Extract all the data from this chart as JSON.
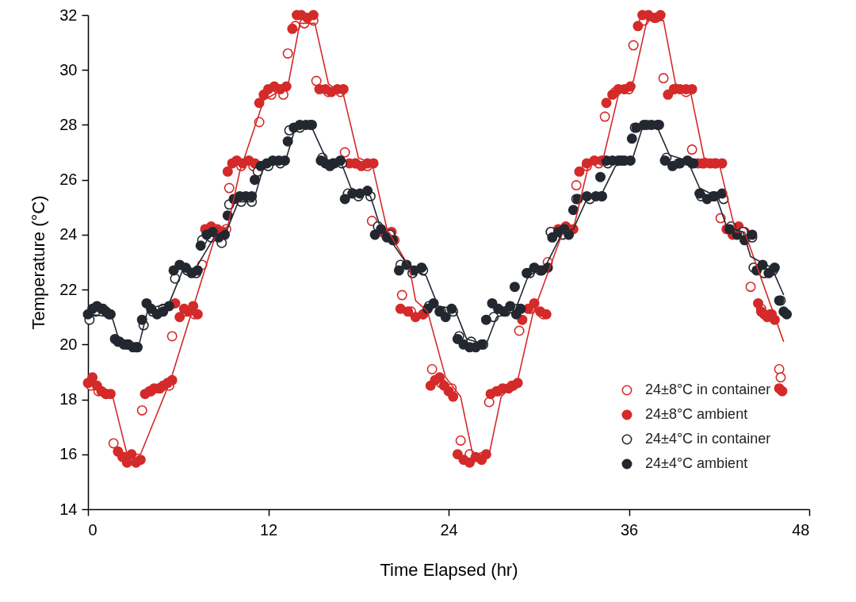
{
  "chart_data": {
    "type": "scatter",
    "xlabel": "Time Elapsed (hr)",
    "ylabel": "Temperature (°C)",
    "xlim": [
      0,
      48
    ],
    "xticks": [
      0,
      12,
      24,
      36,
      48
    ],
    "ylim": [
      14,
      32
    ],
    "yticks": [
      14,
      16,
      18,
      20,
      22,
      24,
      26,
      28,
      30,
      32
    ],
    "grid": false,
    "legend": "bottom right",
    "marker": "circle",
    "series": [
      {
        "name": "24±8°C in container",
        "color": "#d42a2a",
        "marker": "open circle",
        "x": [
          0.2,
          0.7,
          1.2,
          1.7,
          2.4,
          3.6,
          4.2,
          4.8,
          5.4,
          5.6,
          6.5,
          7.1,
          7.6,
          9.2,
          9.4,
          10.2,
          11.0,
          11.4,
          12.2,
          13.0,
          13.3,
          13.8,
          14.4,
          15.0,
          15.2,
          16.0,
          16.8,
          17.1,
          17.8,
          18.6,
          18.9,
          19.6,
          20.4,
          20.9,
          21.5,
          22.3,
          22.9,
          23.5,
          24.2,
          24.8,
          25.4,
          26.2,
          26.7,
          27.3,
          28.2,
          28.7,
          29.5,
          30.3,
          30.6,
          32.5,
          33.2,
          34.0,
          34.4,
          35.1,
          36.0,
          36.3,
          37.0,
          37.8,
          38.3,
          39.0,
          39.8,
          40.2,
          40.9,
          41.7,
          42.1,
          44.1,
          44.8,
          45.4,
          46.0,
          46.1
        ],
        "values": [
          18.5,
          18.3,
          18.2,
          16.4,
          15.9,
          17.6,
          18.3,
          18.4,
          18.5,
          20.3,
          21.2,
          21.1,
          22.9,
          24.2,
          25.7,
          26.5,
          26.5,
          28.1,
          29.1,
          29.1,
          30.6,
          31.6,
          31.7,
          31.8,
          29.6,
          29.2,
          29.2,
          27.0,
          26.6,
          26.5,
          24.5,
          24.1,
          23.8,
          21.8,
          21.2,
          21.1,
          19.1,
          18.6,
          18.4,
          16.5,
          16.0,
          15.9,
          17.9,
          18.3,
          18.5,
          20.5,
          21.3,
          21.1,
          23.0,
          25.8,
          26.5,
          26.6,
          28.3,
          29.2,
          29.3,
          30.9,
          31.8,
          31.9,
          29.7,
          29.3,
          29.2,
          27.1,
          26.6,
          26.6,
          24.6,
          22.1,
          21.3,
          21.1,
          19.1,
          18.8
        ]
      },
      {
        "name": "24±8°C ambient",
        "color": "#d42a2a",
        "x": [
          0,
          0.3,
          0.6,
          0.9,
          1.2,
          1.5,
          2.0,
          2.3,
          2.6,
          2.9,
          3.2,
          3.5,
          3.8,
          4.1,
          4.4,
          4.7,
          5.0,
          5.3,
          5.6,
          5.8,
          6.1,
          6.4,
          6.7,
          7.0,
          7.3,
          7.8,
          8.2,
          8.6,
          9.0,
          9.3,
          9.6,
          9.9,
          10.3,
          10.7,
          11.1,
          11.4,
          11.7,
          12.0,
          12.4,
          12.8,
          13.2,
          13.6,
          13.9,
          14.2,
          14.6,
          15.0,
          15.4,
          15.8,
          16.2,
          16.6,
          17.0,
          17.4,
          17.8,
          18.2,
          18.6,
          19.0,
          19.8,
          20.2,
          20.8,
          21.3,
          21.8,
          22.3,
          22.8,
          23.1,
          23.4,
          23.7,
          24.0,
          24.3,
          24.6,
          25.0,
          25.4,
          25.8,
          26.2,
          26.5,
          26.8,
          27.2,
          27.6,
          28.0,
          28.3,
          28.6,
          28.9,
          29.3,
          29.7,
          30.1,
          30.5,
          30.8,
          31.3,
          31.8,
          32.3,
          32.7,
          33.2,
          33.7,
          34.2,
          34.5,
          34.9,
          35.3,
          35.7,
          36.1,
          36.6,
          36.9,
          37.3,
          37.7,
          38.1,
          38.6,
          39.0,
          39.4,
          39.8,
          40.2,
          40.6,
          41.0,
          41.4,
          41.8,
          42.2,
          42.5,
          42.9,
          43.3,
          43.7,
          44.6,
          44.8,
          45.0,
          45.2,
          45.5,
          45.7,
          46.0,
          46.2
        ],
        "values": [
          18.6,
          18.8,
          18.5,
          18.3,
          18.2,
          18.2,
          16.1,
          15.9,
          15.7,
          16.0,
          15.7,
          15.8,
          18.2,
          18.3,
          18.4,
          18.4,
          18.5,
          18.6,
          18.7,
          21.5,
          21.0,
          21.3,
          21.2,
          21.4,
          21.1,
          24.2,
          24.3,
          24.2,
          24.1,
          26.3,
          26.6,
          26.7,
          26.6,
          26.7,
          26.6,
          28.8,
          29.1,
          29.3,
          29.4,
          29.3,
          29.4,
          31.5,
          32.0,
          32.0,
          31.9,
          32.0,
          29.3,
          29.3,
          29.2,
          29.3,
          29.3,
          26.6,
          26.6,
          26.5,
          26.6,
          26.6,
          24.0,
          24.1,
          21.3,
          21.2,
          21.0,
          21.1,
          18.5,
          18.7,
          18.8,
          18.5,
          18.3,
          18.1,
          16.0,
          15.8,
          15.7,
          15.9,
          15.8,
          16.0,
          18.2,
          18.3,
          18.4,
          18.4,
          18.5,
          18.6,
          20.9,
          21.3,
          21.5,
          21.2,
          21.1,
          24.1,
          24.2,
          24.3,
          24.2,
          26.3,
          26.6,
          26.7,
          26.7,
          28.8,
          29.1,
          29.3,
          29.3,
          29.4,
          31.6,
          32.0,
          32.0,
          31.9,
          32.0,
          29.1,
          29.3,
          29.3,
          29.3,
          29.3,
          26.6,
          26.6,
          26.6,
          26.6,
          26.6,
          24.2,
          24.0,
          24.3,
          24.1,
          21.5,
          21.2,
          21.1,
          21.0,
          21.1,
          20.9,
          18.4,
          18.3
        ]
      },
      {
        "name": "24±4°C in container",
        "color": "#232830",
        "marker": "open circle",
        "x": [
          0.1,
          0.5,
          1.0,
          1.4,
          2.0,
          2.6,
          3.2,
          3.7,
          4.3,
          5.0,
          5.8,
          6.6,
          7.2,
          7.6,
          8.2,
          8.9,
          9.4,
          10.2,
          10.9,
          11.3,
          12.0,
          12.8,
          13.4,
          14.1,
          14.8,
          15.6,
          16.3,
          16.9,
          17.3,
          18.0,
          18.8,
          19.3,
          20.1,
          20.8,
          21.6,
          22.3,
          22.7,
          23.5,
          24.3,
          24.7,
          25.5,
          26.3,
          27.0,
          27.8,
          28.6,
          29.4,
          30.1,
          30.8,
          31.6,
          32.5,
          33.4,
          34.2,
          34.6,
          35.5,
          36.4,
          37.2,
          37.9,
          38.5,
          39.3,
          40.2,
          40.8,
          41.6,
          42.3,
          42.8,
          43.6,
          44.2,
          44.3,
          45.0,
          45.6,
          46.1
        ],
        "values": [
          20.9,
          21.2,
          21.3,
          21.1,
          20.1,
          20.0,
          19.9,
          20.7,
          21.2,
          21.3,
          22.4,
          22.7,
          22.6,
          23.8,
          23.9,
          23.7,
          25.1,
          25.2,
          25.2,
          26.3,
          26.5,
          26.6,
          27.8,
          27.9,
          28.0,
          26.8,
          26.6,
          26.6,
          25.5,
          25.4,
          25.4,
          24.3,
          24.0,
          22.9,
          22.6,
          22.7,
          21.4,
          21.2,
          21.2,
          20.3,
          20.1,
          20.0,
          21.0,
          21.2,
          21.3,
          22.6,
          22.7,
          24.1,
          24.0,
          25.3,
          25.3,
          25.4,
          26.6,
          26.7,
          27.9,
          28.0,
          28.0,
          26.8,
          26.6,
          26.6,
          25.4,
          25.4,
          25.3,
          24.3,
          24.1,
          23.9,
          22.8,
          22.6,
          22.7,
          21.6
        ]
      },
      {
        "name": "24±4°C ambient",
        "color": "#232830",
        "x": [
          0,
          0.3,
          0.6,
          0.9,
          1.2,
          1.5,
          1.8,
          2.1,
          2.4,
          2.7,
          3.0,
          3.3,
          3.6,
          3.9,
          4.2,
          4.6,
          5.0,
          5.4,
          5.7,
          6.1,
          6.5,
          6.9,
          7.3,
          7.5,
          7.9,
          8.3,
          8.7,
          9.1,
          9.3,
          9.7,
          10.1,
          10.5,
          10.9,
          11.1,
          11.5,
          11.9,
          12.3,
          12.7,
          13.1,
          13.3,
          13.7,
          14.1,
          14.5,
          14.9,
          15.5,
          15.8,
          16.1,
          16.4,
          16.8,
          17.1,
          17.6,
          18.1,
          18.6,
          19.1,
          19.5,
          19.9,
          20.3,
          20.7,
          21.2,
          21.7,
          22.2,
          22.6,
          23.0,
          23.4,
          23.8,
          24.2,
          24.6,
          25.0,
          25.4,
          25.8,
          26.2,
          26.5,
          26.9,
          27.3,
          27.7,
          28.1,
          28.5,
          28.8,
          28.4,
          29.2,
          29.7,
          30.2,
          30.6,
          30.9,
          31.3,
          31.7,
          32.0,
          32.3,
          32.6,
          33.2,
          33.8,
          34.2,
          34.1,
          34.5,
          34.9,
          35.3,
          35.7,
          36.1,
          36.2,
          36.5,
          37.0,
          37.5,
          38.0,
          38.4,
          38.9,
          39.4,
          39.9,
          40.3,
          40.7,
          41.2,
          41.7,
          42.2,
          42.7,
          43.2,
          43.7,
          44.2,
          44.5,
          44.9,
          45.3,
          45.7,
          46.0,
          46.3,
          46.5
        ],
        "values": [
          21.1,
          21.3,
          21.4,
          21.3,
          21.2,
          21.1,
          20.2,
          20.1,
          20.0,
          20.0,
          19.9,
          19.9,
          20.9,
          21.5,
          21.3,
          21.1,
          21.2,
          21.4,
          22.7,
          22.9,
          22.8,
          22.6,
          22.7,
          23.6,
          24.0,
          24.1,
          23.9,
          24.0,
          24.7,
          25.3,
          25.4,
          25.4,
          25.4,
          26.0,
          26.5,
          26.6,
          26.7,
          26.7,
          26.7,
          27.4,
          27.9,
          28.0,
          28.0,
          28.0,
          26.7,
          26.6,
          26.5,
          26.6,
          26.7,
          25.3,
          25.5,
          25.5,
          25.6,
          24.0,
          24.2,
          23.9,
          23.8,
          22.7,
          22.9,
          22.7,
          22.8,
          21.3,
          21.5,
          21.2,
          21.0,
          21.3,
          20.2,
          20.0,
          19.9,
          19.9,
          20.0,
          20.9,
          21.5,
          21.3,
          21.2,
          21.4,
          21.1,
          21.3,
          22.1,
          22.6,
          22.8,
          22.7,
          22.8,
          23.9,
          24.1,
          24.2,
          24.0,
          24.9,
          25.3,
          25.4,
          25.4,
          25.4,
          26.1,
          26.7,
          26.7,
          26.7,
          26.7,
          26.7,
          27.5,
          27.9,
          28.0,
          28.0,
          28.0,
          26.7,
          26.5,
          26.6,
          26.7,
          26.6,
          25.5,
          25.3,
          25.4,
          25.5,
          24.2,
          24.0,
          23.8,
          24.0,
          22.7,
          22.9,
          22.6,
          22.8,
          21.6,
          21.2,
          21.1
        ]
      },
      {
        "type": "line",
        "color": "#d42a2a",
        "marker": "none",
        "x": [
          0,
          1.6,
          2.6,
          3.5,
          5.5,
          8.5,
          9.3,
          10.1,
          11.7,
          13.3,
          14.1,
          15.1,
          16.0,
          17.0,
          18.0,
          18.9,
          19.9,
          21.4,
          21.8,
          22.6,
          23.8,
          24.8,
          25.6,
          26.7,
          27.5,
          28.6,
          29.6,
          31.6,
          32.3,
          33.3,
          34.3,
          35.3,
          36.3,
          37.2,
          38.3,
          39.1,
          40.1,
          41.0,
          42.0,
          43.1,
          43.7,
          46.3
        ],
        "values": [
          18.7,
          18.2,
          16.0,
          16.0,
          18.7,
          24.0,
          24.3,
          26.3,
          28.9,
          29.4,
          31.7,
          31.7,
          29.5,
          29.1,
          26.8,
          26.6,
          24.2,
          22.8,
          21.6,
          21.2,
          18.8,
          18.1,
          16.0,
          16.0,
          18.1,
          18.7,
          21.1,
          24.1,
          24.2,
          26.5,
          26.8,
          29.1,
          29.6,
          31.8,
          31.8,
          29.5,
          29.2,
          26.8,
          26.6,
          24.1,
          24.1,
          20.1
        ]
      },
      {
        "type": "line",
        "color": "#232830",
        "marker": "none",
        "x": [
          0.1,
          1.6,
          2.1,
          3.4,
          4.0,
          5.4,
          6.3,
          7.2,
          8.5,
          9.2,
          10.0,
          11.0,
          11.7,
          13.1,
          13.8,
          14.9,
          15.9,
          16.8,
          17.5,
          18.8,
          19.5,
          20.0,
          21.4,
          22.5,
          23.3,
          24.4,
          25.2,
          26.5,
          27.2,
          28.4,
          29.3,
          30.4,
          31.6,
          32.3,
          33.2,
          34.2,
          35.1,
          36.2,
          36.9,
          37.9,
          38.7,
          39.9,
          40.7,
          41.8,
          42.5,
          43.6,
          44.1,
          45.5,
          46.3
        ],
        "values": [
          21.1,
          21.0,
          20.1,
          20.0,
          21.3,
          21.5,
          22.7,
          22.8,
          24.0,
          24.1,
          25.2,
          25.2,
          26.5,
          26.6,
          27.9,
          27.9,
          26.7,
          26.7,
          25.7,
          25.4,
          24.2,
          23.9,
          22.8,
          22.5,
          21.4,
          21.3,
          20.2,
          20.0,
          21.0,
          21.2,
          22.5,
          22.8,
          24.1,
          24.2,
          25.3,
          25.5,
          26.5,
          26.7,
          27.9,
          27.9,
          26.9,
          26.7,
          25.7,
          25.4,
          24.3,
          24.1,
          23.2,
          22.8,
          21.8
        ]
      }
    ]
  }
}
